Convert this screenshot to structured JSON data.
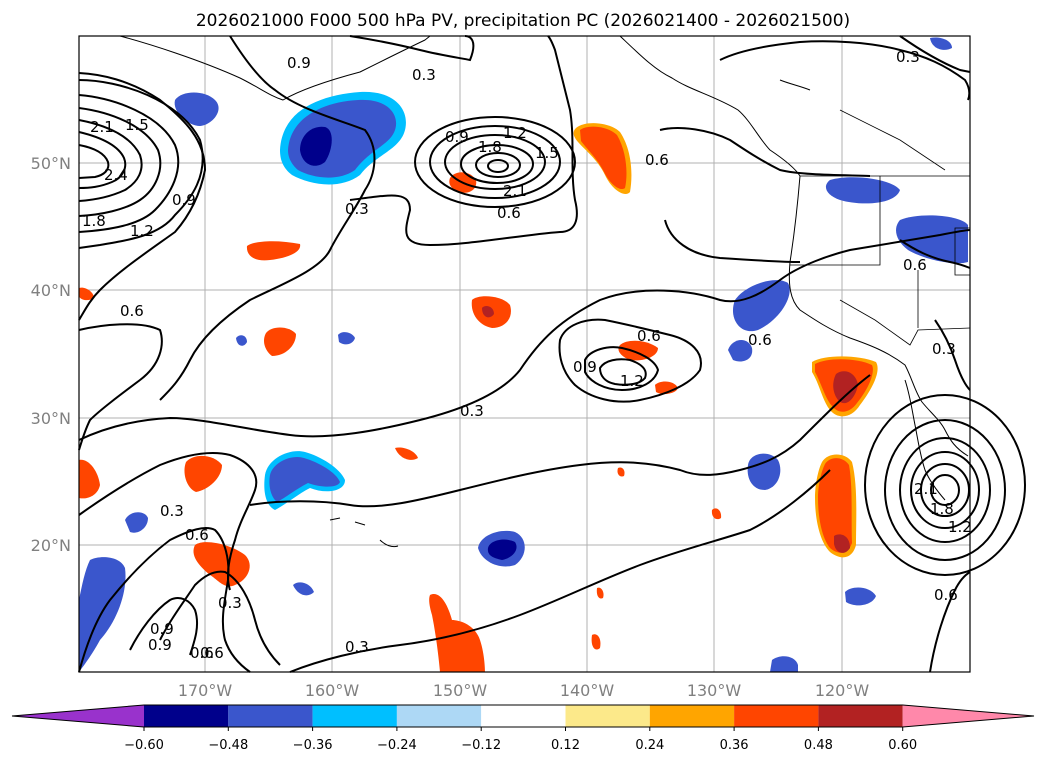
{
  "title": "2026021000 F000 500 hPa PV, precipitation PC (2026021400 - 2026021500)",
  "map": {
    "lat_ticks": [
      "50°N",
      "40°N",
      "30°N",
      "20°N"
    ],
    "lon_ticks": [
      "170°W",
      "160°W",
      "150°W",
      "140°W",
      "130°W",
      "120°W"
    ],
    "pv_contour_labels": [
      "0.9",
      "0.3",
      "1.5",
      "2.1",
      "2.4",
      "1.8",
      "1.2",
      "0.9",
      "0.3",
      "0.9",
      "1.2",
      "1.8",
      "1.5",
      "2.1",
      "0.6",
      "0.6",
      "0.3",
      "0.6",
      "0.6",
      "0.9",
      "1.2",
      "0.6",
      "0.3",
      "0.3",
      "0.6",
      "0.3",
      "0.6",
      "0.9",
      "0.9",
      "0.6",
      "0.3",
      "2.1",
      "1.8",
      "1.2",
      "0.6",
      "0.6",
      "0.3"
    ]
  },
  "colorbar": {
    "ticks": [
      "−0.60",
      "−0.48",
      "−0.36",
      "−0.24",
      "−0.12",
      "0.12",
      "0.24",
      "0.36",
      "0.48",
      "0.60"
    ],
    "colors": [
      "#9932cc",
      "#00008b",
      "#3a56cc",
      "#00bfff",
      "#add8f5",
      "#ffffff",
      "#fce98a",
      "#ffa500",
      "#ff4500",
      "#b22222",
      "#ff88aa"
    ]
  },
  "legend_colors": {
    "neg_strong": "#00008b",
    "neg_mid": "#3a56cc",
    "neg_light": "#00bfff",
    "pos_light": "#ffa500",
    "pos_mid": "#ff4500",
    "pos_strong": "#b22222"
  }
}
